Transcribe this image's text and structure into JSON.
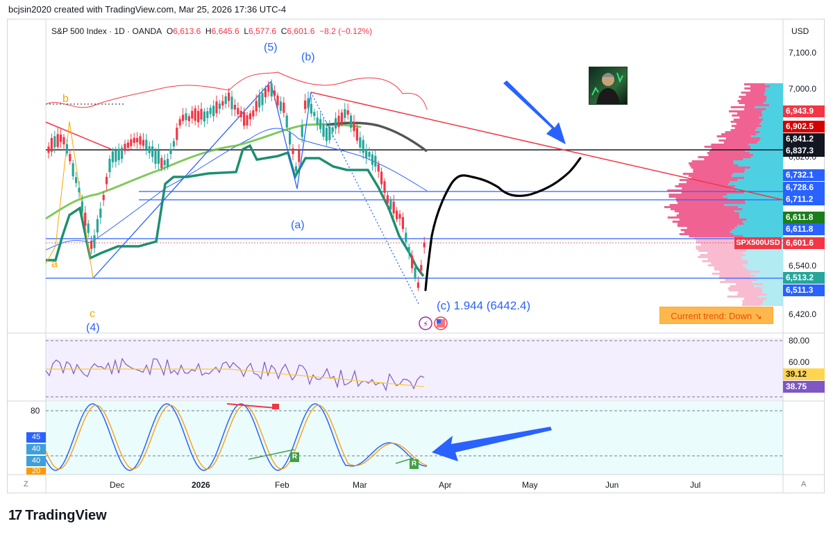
{
  "header": {
    "credit": "bcjsin2020 created with TradingView.com, Mar 25, 2026 17:36 UTC-4"
  },
  "legend": {
    "symbol": "S&P 500 Index · 1D · OANDA",
    "o_key": "O",
    "o_val": "6,613.6",
    "h_key": "H",
    "h_val": "6,645.6",
    "l_key": "L",
    "l_val": "6,577.6",
    "c_key": "C",
    "c_val": "6,601.6",
    "change": "−8.2 (−0.12%)"
  },
  "currency": "USD",
  "price_axis": {
    "ticks": [
      "7,100.0",
      "7,000.0",
      "6,820.0",
      "6,540.0",
      "6,420.0"
    ],
    "labels": [
      {
        "text": "6,943.9",
        "color": "#f23645"
      },
      {
        "text": "6,902.5",
        "color": "#d50000"
      },
      {
        "text": "6,841.2",
        "color": "#131722"
      },
      {
        "text": "6,837.3",
        "color": "#131722"
      },
      {
        "text": "6,732.1",
        "color": "#2962ff"
      },
      {
        "text": "6,728.6",
        "color": "#2962ff"
      },
      {
        "text": "6,711.2",
        "color": "#2962ff"
      },
      {
        "text": "6,611.8",
        "color": "#1b7e1b"
      },
      {
        "text": "6,611.8",
        "color": "#2962ff"
      },
      {
        "text": "6,601.6",
        "color": "#f23645"
      },
      {
        "text": "6,513.2",
        "color": "#26a69a"
      },
      {
        "text": "6,511.3",
        "color": "#2962ff"
      }
    ],
    "symbol_tag": "SPX500USD"
  },
  "rsi_axis": {
    "ticks": [
      "80.00",
      "60.00"
    ],
    "labels": [
      {
        "text": "39.12",
        "color": "#ffd54f"
      },
      {
        "text": "38.75",
        "color": "#7e57c2"
      }
    ]
  },
  "osc_axis": {
    "tick": "80",
    "labels": [
      "45",
      "40",
      "40",
      "20"
    ]
  },
  "time_axis": {
    "ticks": [
      "Dec",
      "2026",
      "Feb",
      "Mar",
      "Apr",
      "May",
      "Jun",
      "Jul"
    ]
  },
  "corners": {
    "left": "Z",
    "right": "A"
  },
  "waves": {
    "five": "(5)",
    "b_paren": "(b)",
    "a_paren": "(a)",
    "four": "(4)",
    "b_small": "b",
    "a_small": "a",
    "c_small": "c"
  },
  "target_note": "(c) 1.944 (6442.4)",
  "trend": "Current trend: Down ↘",
  "divergence": {
    "r1": "R",
    "r2": "R"
  },
  "footer": {
    "brand": "TradingView"
  },
  "colors": {
    "up": "#26a69a",
    "down": "#f23645",
    "wave_blue": "#2962ff",
    "trend_red": "#f23645",
    "ma_green": "#2e8b57",
    "ema_gray": "#555555",
    "vp_pink": "#f06292",
    "vp_cyan": "#26c6da",
    "rsi_purple": "#7e57c2",
    "rsi_ma": "#ffca28",
    "stoch_blue": "#2962ff",
    "stoch_orange": "#ff9800"
  },
  "icons": {
    "lightning": "lightning-icon",
    "flag": "us-flag-icon",
    "avatar": "author-avatar"
  }
}
